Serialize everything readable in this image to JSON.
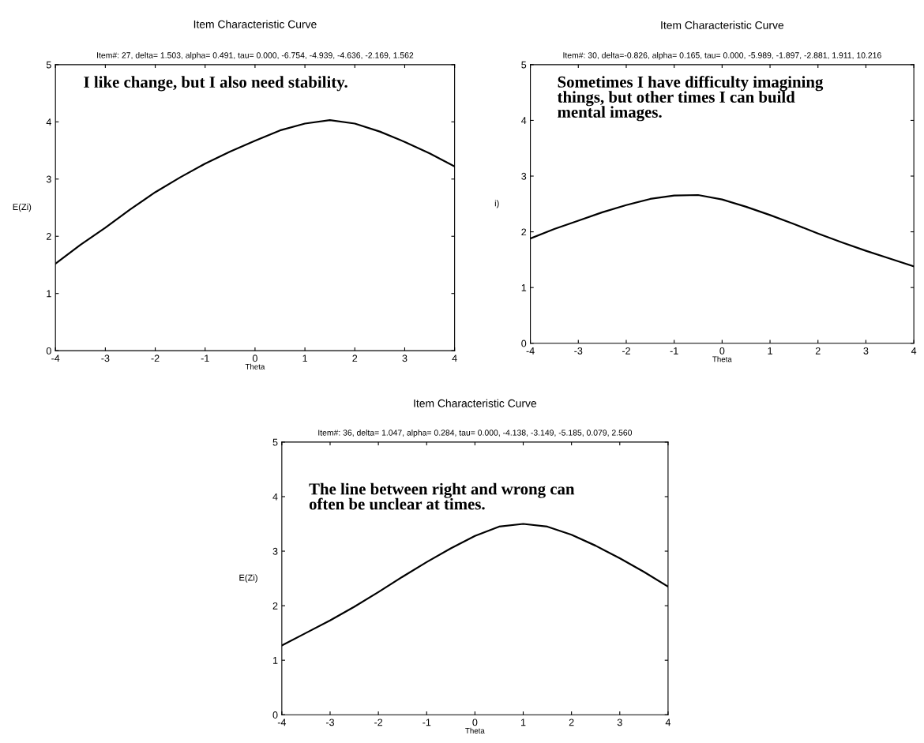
{
  "chart_data": [
    {
      "type": "line",
      "title": "Item Characteristic Curve",
      "subtitle": "Item#: 27, delta= 1.503, alpha= 0.491, tau= 0.000, -6.754, -4.939, -4.636, -2.169, 1.562",
      "xlabel": "Theta",
      "ylabel": "E(Zi)",
      "annotations": [
        "I like change, but I also need stability."
      ],
      "x": [
        -4,
        -3.5,
        -3,
        -2.5,
        -2,
        -1.5,
        -1,
        -0.5,
        0,
        0.5,
        1,
        1.5,
        2,
        2.5,
        3,
        3.5,
        4
      ],
      "series": [
        {
          "color": "#000000",
          "values": [
            1.52,
            1.85,
            2.15,
            2.47,
            2.77,
            3.03,
            3.27,
            3.48,
            3.67,
            3.85,
            3.97,
            4.03,
            3.97,
            3.83,
            3.65,
            3.45,
            3.22
          ]
        }
      ],
      "xlim": [
        -4,
        4
      ],
      "xticks": [
        -4,
        -3,
        -2,
        -1,
        0,
        1,
        2,
        3,
        4
      ],
      "ylim": [
        0,
        5
      ],
      "yticks": [
        0,
        1,
        2,
        3,
        4,
        5
      ],
      "grid": false,
      "legend": false,
      "marker": "none",
      "line_style": "solid"
    },
    {
      "type": "line",
      "title": "Item Characteristic Curve",
      "subtitle": "Item#: 30, delta=-0.826, alpha= 0.165, tau= 0.000, -5.989, -1.897, -2.881, 1.911, 10.216",
      "xlabel": "Theta",
      "ylabel": "i)",
      "annotations": [
        "Sometimes I have difficulty imagining\nthings, but other times I can build\nmental images."
      ],
      "x": [
        -4,
        -3.5,
        -3,
        -2.5,
        -2,
        -1.5,
        -1,
        -0.5,
        0,
        0.5,
        1,
        1.5,
        2,
        2.5,
        3,
        3.5,
        4
      ],
      "series": [
        {
          "color": "#000000",
          "values": [
            1.88,
            2.05,
            2.2,
            2.35,
            2.48,
            2.59,
            2.65,
            2.66,
            2.58,
            2.45,
            2.3,
            2.14,
            1.97,
            1.81,
            1.66,
            1.52,
            1.38
          ]
        }
      ],
      "xlim": [
        -4,
        4
      ],
      "xticks": [
        -4,
        -3,
        -2,
        -1,
        0,
        1,
        2,
        3,
        4
      ],
      "ylim": [
        0,
        5
      ],
      "yticks": [
        0,
        1,
        2,
        3,
        4,
        5
      ],
      "grid": false,
      "legend": false,
      "marker": "none",
      "line_style": "solid"
    },
    {
      "type": "line",
      "title": "Item Characteristic Curve",
      "subtitle": "Item#: 36, delta= 1.047, alpha= 0.284, tau= 0.000, -4.138, -3.149, -5.185, 0.079, 2.560",
      "xlabel": "Theta",
      "ylabel": "E(Zi)",
      "annotations": [
        "The line between right and wrong can\noften be unclear at times."
      ],
      "x": [
        -4,
        -3.5,
        -3,
        -2.5,
        -2,
        -1.5,
        -1,
        -0.5,
        0,
        0.5,
        1,
        1.5,
        2,
        2.5,
        3,
        3.5,
        4
      ],
      "series": [
        {
          "color": "#000000",
          "values": [
            1.27,
            1.5,
            1.73,
            1.98,
            2.25,
            2.53,
            2.8,
            3.05,
            3.28,
            3.45,
            3.5,
            3.45,
            3.3,
            3.1,
            2.87,
            2.62,
            2.35
          ]
        }
      ],
      "xlim": [
        -4,
        4
      ],
      "xticks": [
        -4,
        -3,
        -2,
        -1,
        0,
        1,
        2,
        3,
        4
      ],
      "ylim": [
        0,
        5
      ],
      "yticks": [
        0,
        1,
        2,
        3,
        4,
        5
      ],
      "grid": false,
      "legend": false,
      "marker": "none",
      "line_style": "solid"
    }
  ]
}
